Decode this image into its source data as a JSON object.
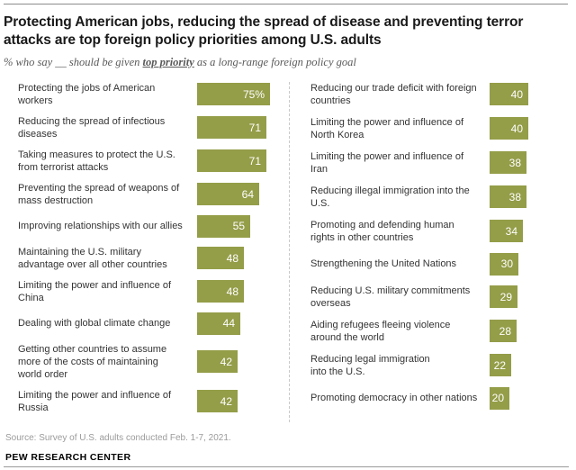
{
  "header": {
    "title_lines": [
      "Protecting American jobs, reducing the spread of disease and preventing terror",
      "attacks are top foreign policy priorities among U.S. adults"
    ],
    "subtitle_prefix": "% who say __ should be given ",
    "subtitle_emphasis": "top priority",
    "subtitle_suffix": " as a long-range foreign policy goal"
  },
  "chart_data": {
    "type": "bar",
    "orientation": "horizontal",
    "title": "Protecting American jobs, reducing the spread of disease and preventing terror attacks are top foreign policy priorities among U.S. adults",
    "subtitle": "% who say __ should be given top priority as a long-range foreign policy goal",
    "unit": "%",
    "value_range": [
      0,
      100
    ],
    "legend": "none",
    "columns": [
      {
        "categories": [
          "Protecting the jobs of American\nworkers",
          "Reducing the spread of infectious\ndiseases",
          "Taking measures to protect the U.S.\nfrom terrorist attacks",
          "Preventing the spread of weapons of\nmass destruction",
          "Improving relationships with our allies",
          "Maintaining the U.S. military\nadvantage over all other countries",
          "Limiting the power and influence of\nChina",
          "Dealing with global climate change",
          "Getting other countries to assume\nmore of the costs of maintaining\nworld order",
          "Limiting the power and influence of\nRussia"
        ],
        "values": [
          75,
          71,
          71,
          64,
          55,
          48,
          48,
          44,
          42,
          42
        ],
        "value_labels": [
          "75%",
          "71",
          "71",
          "64",
          "55",
          "48",
          "48",
          "44",
          "42",
          "42"
        ]
      },
      {
        "categories": [
          "Reducing our trade deficit with foreign\ncountries",
          "Limiting the power and influence of\nNorth Korea",
          "Limiting the power and influence of\nIran",
          "Reducing illegal immigration into the\nU.S.",
          "Promoting and defending human\nrights in other countries",
          "Strengthening the United Nations",
          "Reducing U.S. military commitments\noverseas",
          "Aiding refugees fleeing violence\naround the world",
          "Reducing legal immigration\ninto the U.S.",
          "Promoting democracy in other nations"
        ],
        "values": [
          40,
          40,
          38,
          38,
          34,
          30,
          29,
          28,
          22,
          20
        ],
        "value_labels": [
          "40",
          "40",
          "38",
          "38",
          "34",
          "30",
          "29",
          "28",
          "22",
          "20"
        ]
      }
    ]
  },
  "footer": {
    "source": "Source: Survey of U.S. adults conducted Feb. 1-7, 2021.",
    "brand": "PEW RESEARCH CENTER"
  },
  "colors": {
    "bar_fill": "#949d48",
    "value_text": "#ffffff",
    "label_text": "#333333",
    "subtitle_text": "#5a5a5a",
    "source_text": "#9b9b9b",
    "rule": "#8c8c8c",
    "column_divider": "#c9c9c9"
  }
}
